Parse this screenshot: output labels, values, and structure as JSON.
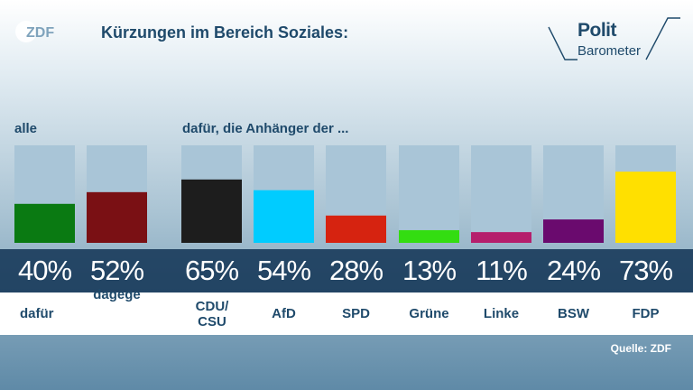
{
  "logo_text": "ZDF",
  "title": "Kürzungen im Bereich Soziales:",
  "brand": {
    "line1": "Polit",
    "line2": "Barometer"
  },
  "sections": {
    "left": "alle",
    "right": "dafür, die Anhänger der ..."
  },
  "source": "Quelle: ZDF",
  "colors": {
    "track": "#a9c5d7",
    "band": "#113354",
    "text": "#1f4a6b"
  },
  "chart_data": {
    "type": "bar",
    "unit": "%",
    "ylim": [
      0,
      100
    ],
    "groups": [
      {
        "label": "alle",
        "categories": [
          "dafür",
          "dagege"
        ]
      },
      {
        "label": "dafür, die Anhänger der ...",
        "categories": [
          "CDU/ CSU",
          "AfD",
          "SPD",
          "Grüne",
          "Linke",
          "BSW",
          "FDP"
        ]
      }
    ],
    "categories": [
      "dafür",
      "dagege",
      "CDU/ CSU",
      "AfD",
      "SPD",
      "Grüne",
      "Linke",
      "BSW",
      "FDP"
    ],
    "values": [
      40,
      52,
      65,
      54,
      28,
      13,
      11,
      24,
      73
    ],
    "value_labels": [
      "40%",
      "52%",
      "65%",
      "54%",
      "28%",
      "13%",
      "11%",
      "24%",
      "73%"
    ],
    "colors": [
      "#0a7a12",
      "#7a1014",
      "#1d1d1d",
      "#00ccff",
      "#d62310",
      "#33dd11",
      "#b51f6c",
      "#6a0a6e",
      "#ffe000"
    ]
  }
}
